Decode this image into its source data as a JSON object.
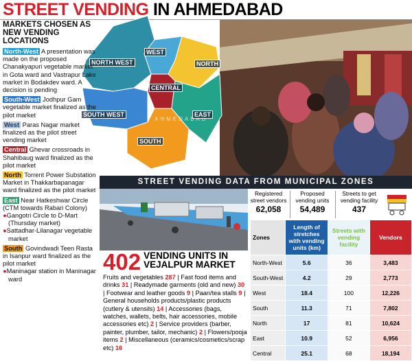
{
  "header": {
    "title_highlight": "STREET VENDING",
    "title_rest": "IN AHMEDABAD"
  },
  "markets": {
    "heading": "MARKETS CHOSEN AS NEW VENDING LOCATIONS",
    "items": [
      {
        "zone": "North-West",
        "text": "A presentation was made on the proposed Chanakyapuri vegetable market in Gota ward and Vastrapur Lake market in Bodakdev ward. A decision is pending"
      },
      {
        "zone": "South-West",
        "text": "Jodhpur Gam vegetable market finalized as the pilot market"
      },
      {
        "zone": "West",
        "text": "Paras Nagar market finalized as the pilot street vending market"
      },
      {
        "zone": "Central",
        "text": "Ghevar crossroads in Shahibaug ward finalized as the pilot market"
      },
      {
        "zone": "North",
        "text": "Torrent Power Substation Market in Thakkarbapanagar ward finalized as the pilot market"
      },
      {
        "zone": "East",
        "text": "Near Hatkeshwar Circle (CTM towards Rabari Colony)",
        "bullets": [
          "Gangotri Circle to D-Mart (Thursday market)",
          "Sattadhar-Lilanagar vegetable market"
        ]
      },
      {
        "zone": "South",
        "text": "Govindwadi Teen Rasta in Isanpur ward finalized as the pilot market",
        "bullets": [
          "Maninagar station in Maninagar ward"
        ]
      }
    ]
  },
  "map": {
    "city": "AHMEDABAD",
    "zones": [
      "NORTH WEST",
      "WEST",
      "NORTH",
      "CENTRAL",
      "SOUTH WEST",
      "EAST",
      "SOUTH"
    ]
  },
  "municipal": {
    "heading": "STREET VENDING DATA FROM MUNICIPAL ZONES",
    "stats": [
      {
        "label": "Registered street vendors",
        "value": "62,058"
      },
      {
        "label": "Proposed vending units",
        "value": "54,489"
      },
      {
        "label": "Streets to get vending facility",
        "value": "437"
      }
    ]
  },
  "vejalpur": {
    "count": "402",
    "heading": "VENDING UNITS IN VEJALPUR MARKET",
    "items": [
      {
        "name": "Fruits and vegetables",
        "count": "287"
      },
      {
        "name": "Fast food items and drinks",
        "count": "31"
      },
      {
        "name": "Readymade garments (old and new)",
        "count": "30"
      },
      {
        "name": "Footwear and leather goods",
        "count": "9"
      },
      {
        "name": "Paan/tea stalls",
        "count": "9"
      },
      {
        "name": "General households products/plastic products (cutlery & utensils)",
        "count": "14"
      },
      {
        "name": "Accessories (bags, watches, wallets, belts, hair accessories, mobile accessories etc)",
        "count": "2"
      },
      {
        "name": "Service providers (barber, painter, plumber, tailor, mechanic)",
        "count": "2"
      },
      {
        "name": "Flowers/pooja items",
        "count": "2"
      },
      {
        "name": "Miscellaneous (ceramics/cosmetics/scrap etc)",
        "count": "16"
      }
    ]
  },
  "table": {
    "columns": [
      "Zones",
      "Length of stretches with vending units (km)",
      "Streets with vending facility",
      "Vendors"
    ],
    "rows": [
      [
        "North-West",
        "5.6",
        "36",
        "3,483"
      ],
      [
        "South-West",
        "4.2",
        "29",
        "2,773"
      ],
      [
        "West",
        "18.4",
        "100",
        "12,226"
      ],
      [
        "South",
        "11.3",
        "71",
        "7,802"
      ],
      [
        "North",
        "17",
        "81",
        "10,624"
      ],
      [
        "East",
        "10.9",
        "52",
        "6,956"
      ],
      [
        "Central",
        "25.1",
        "68",
        "18,194"
      ]
    ]
  }
}
